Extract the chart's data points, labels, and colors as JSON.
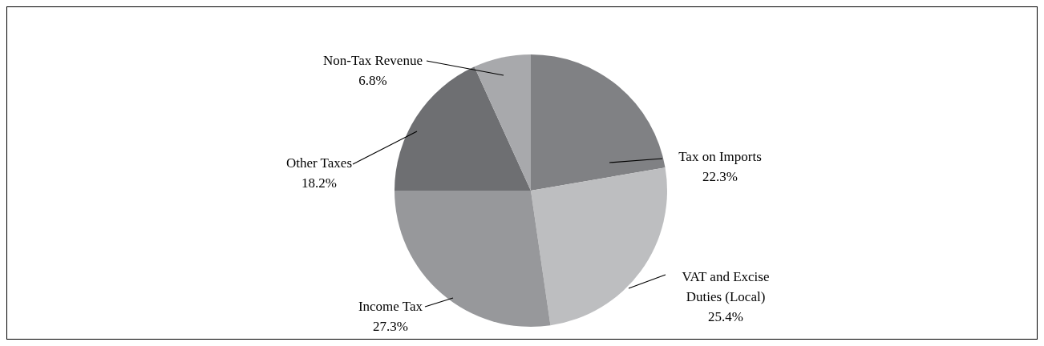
{
  "chart_data": {
    "type": "pie",
    "categories": [
      "Tax on Imports",
      "VAT and Excise Duties (Local)",
      "Income Tax",
      "Other Taxes",
      "Non-Tax Revenue"
    ],
    "values": [
      22.3,
      25.4,
      27.3,
      18.2,
      6.8
    ],
    "colors": [
      "#808184",
      "#bdbec0",
      "#97989b",
      "#6e6f72",
      "#a8a9ac"
    ],
    "value_labels": [
      "22.3%",
      "25.4%",
      "27.3%",
      "18.2%",
      "6.8%"
    ]
  }
}
